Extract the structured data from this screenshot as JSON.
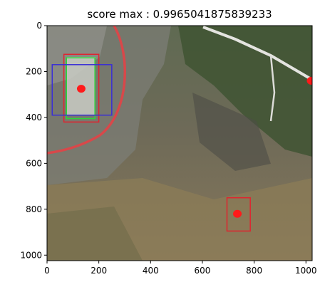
{
  "chart_data": {
    "type": "image-with-detections",
    "title": "score max : 0.9965041875839233",
    "xlim": [
      0,
      1024
    ],
    "ylim": [
      1024,
      0
    ],
    "x_ticks": [
      0,
      200,
      400,
      600,
      800,
      1000
    ],
    "y_ticks": [
      0,
      200,
      400,
      600,
      800,
      1000
    ],
    "grid": false,
    "boxes": [
      {
        "color": "#e0242f",
        "x0": 65,
        "y0": 125,
        "x1": 200,
        "y1": 420
      },
      {
        "color": "#2bd63a",
        "x0": 75,
        "y0": 140,
        "x1": 185,
        "y1": 405
      },
      {
        "color": "#3a2fd6",
        "x0": 20,
        "y0": 170,
        "x1": 250,
        "y1": 390
      },
      {
        "color": "#e0242f",
        "x0": 695,
        "y0": 750,
        "x1": 785,
        "y1": 895
      }
    ],
    "points": [
      {
        "color": "#ff1a1a",
        "x": 132,
        "y": 275
      },
      {
        "color": "#ff1a1a",
        "x": 735,
        "y": 820
      },
      {
        "color": "#ff1a1a",
        "x": 1020,
        "y": 240
      }
    ]
  },
  "colors": {
    "axis": "#000000",
    "background_top": "#6f7363",
    "background_bottom": "#8a7c5c",
    "hose": "#d8484a"
  }
}
